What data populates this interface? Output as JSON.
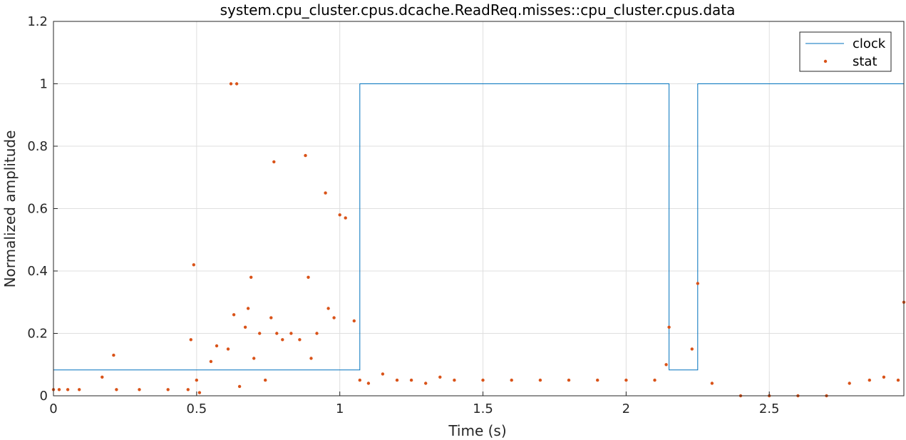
{
  "chart_data": {
    "type": "line",
    "title": "system.cpu_cluster.cpus.dcache.ReadReq.misses::cpu_cluster.cpus.data",
    "xlabel": "Time (s)",
    "ylabel": "Normalized amplitude",
    "xlim": [
      0,
      2.97
    ],
    "ylim": [
      0,
      1.2
    ],
    "xticks": [
      0,
      0.5,
      1,
      1.5,
      2,
      2.5
    ],
    "xtick_labels": [
      "0",
      "0.5",
      "1",
      "1.5",
      "2",
      "2.5"
    ],
    "yticks": [
      0,
      0.2,
      0.4,
      0.6,
      0.8,
      1,
      1.2
    ],
    "ytick_labels": [
      "0",
      "0.2",
      "0.4",
      "0.6",
      "0.8",
      "1",
      "1.2"
    ],
    "grid": true,
    "legend_position": "top-right",
    "series": [
      {
        "name": "clock",
        "style": "step-line",
        "color": "#0072BD",
        "x": [
          0,
          1.07,
          1.07,
          2.15,
          2.15,
          2.25,
          2.25,
          2.97
        ],
        "y": [
          0.083,
          0.083,
          1,
          1,
          0.083,
          0.083,
          1,
          1
        ]
      },
      {
        "name": "stat",
        "style": "dots",
        "color": "#D95319",
        "x": [
          0.0,
          0.02,
          0.05,
          0.09,
          0.17,
          0.21,
          0.22,
          0.3,
          0.4,
          0.47,
          0.48,
          0.49,
          0.5,
          0.51,
          0.55,
          0.57,
          0.61,
          0.62,
          0.63,
          0.64,
          0.65,
          0.67,
          0.68,
          0.69,
          0.7,
          0.72,
          0.74,
          0.76,
          0.77,
          0.78,
          0.8,
          0.83,
          0.86,
          0.88,
          0.89,
          0.9,
          0.92,
          0.95,
          0.96,
          0.98,
          1.0,
          1.02,
          1.05,
          1.07,
          1.1,
          1.15,
          1.2,
          1.25,
          1.3,
          1.35,
          1.4,
          1.5,
          1.6,
          1.7,
          1.8,
          1.9,
          2.0,
          2.1,
          2.14,
          2.15,
          2.23,
          2.25,
          2.3,
          2.4,
          2.5,
          2.6,
          2.7,
          2.78,
          2.85,
          2.9,
          2.95,
          2.97
        ],
        "y": [
          0.02,
          0.02,
          0.02,
          0.02,
          0.06,
          0.13,
          0.02,
          0.02,
          0.02,
          0.02,
          0.18,
          0.42,
          0.05,
          0.01,
          0.11,
          0.16,
          0.15,
          1.0,
          0.26,
          1.0,
          0.03,
          0.22,
          0.28,
          0.38,
          0.12,
          0.2,
          0.05,
          0.25,
          0.75,
          0.2,
          0.18,
          0.2,
          0.18,
          0.77,
          0.38,
          0.12,
          0.2,
          0.65,
          0.28,
          0.25,
          0.58,
          0.57,
          0.24,
          0.05,
          0.04,
          0.07,
          0.05,
          0.05,
          0.04,
          0.06,
          0.05,
          0.05,
          0.05,
          0.05,
          0.05,
          0.05,
          0.05,
          0.05,
          0.1,
          0.22,
          0.15,
          0.36,
          0.04,
          0.0,
          0.0,
          0.0,
          0.0,
          0.04,
          0.05,
          0.06,
          0.05,
          0.3
        ]
      }
    ]
  }
}
